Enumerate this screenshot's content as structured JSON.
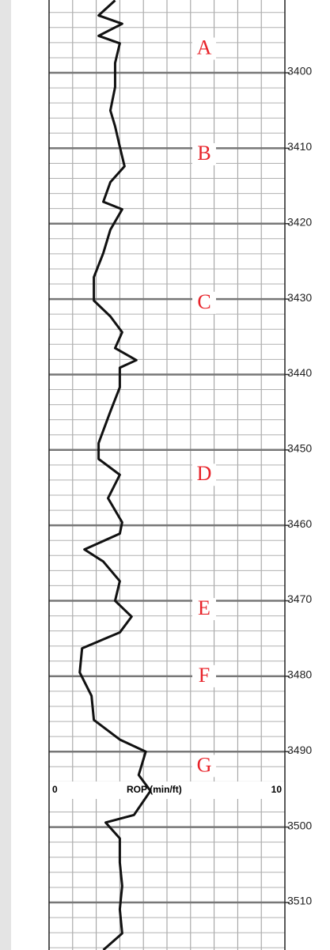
{
  "chart_data": {
    "type": "line",
    "orientation": "vertical",
    "xlabel": "ROP (min/ft)",
    "y": [
      3390.4,
      3392.4,
      3393.5,
      3395.1,
      3396.1,
      3398.7,
      3401.9,
      3405.0,
      3407.1,
      3409.8,
      3412.4,
      3414.5,
      3417.1,
      3418.1,
      3420.8,
      3423.9,
      3427.1,
      3430.2,
      3432.3,
      3434.4,
      3436.5,
      3438.1,
      3439.1,
      3441.7,
      3444.9,
      3449.1,
      3451.2,
      3453.3,
      3456.4,
      3459.6,
      3461.1,
      3463.2,
      3464.8,
      3467.4,
      3470.0,
      3472.1,
      3474.2,
      3476.3,
      3479.5,
      3482.6,
      3485.8,
      3488.4,
      3490.0,
      3493.1,
      3495.2,
      3498.4,
      3499.4,
      3501.5,
      3504.7,
      3507.8,
      3510.9,
      3514.1,
      3516.3
    ],
    "values": [
      2.8,
      2.1,
      3.1,
      2.1,
      3.0,
      2.8,
      2.8,
      2.6,
      2.8,
      3.0,
      3.2,
      2.6,
      2.3,
      3.1,
      2.6,
      2.3,
      1.9,
      1.9,
      2.6,
      3.1,
      2.8,
      3.7,
      3.0,
      3.0,
      2.6,
      2.1,
      2.1,
      3.0,
      2.5,
      3.1,
      3.0,
      1.5,
      2.3,
      3.0,
      2.8,
      3.5,
      3.0,
      1.4,
      1.3,
      1.8,
      1.9,
      3.0,
      4.1,
      3.8,
      4.3,
      3.6,
      2.4,
      3.0,
      3.0,
      3.1,
      3.0,
      3.1,
      2.3
    ],
    "color": "#111111",
    "xlim": [
      0,
      10
    ],
    "xticks": [
      0,
      10
    ],
    "ylim": [
      3390.35,
      3516.3
    ],
    "y_reversed": true,
    "yticks": [
      3400,
      3410,
      3420,
      3430,
      3440,
      3450,
      3460,
      3470,
      3480,
      3490,
      3500,
      3510
    ],
    "grid": true,
    "minor_grid_step": {
      "x": 1,
      "y": 2
    },
    "annotations": [
      {
        "text": "A",
        "y": 3396.8
      },
      {
        "text": "B",
        "y": 3410.8
      },
      {
        "text": "C",
        "y": 3430.5
      },
      {
        "text": "D",
        "y": 3453.3
      },
      {
        "text": "E",
        "y": 3471.1
      },
      {
        "text": "F",
        "y": 3480.0
      },
      {
        "text": "G",
        "y": 3491.9
      }
    ],
    "annotation_color": "#e8232a"
  }
}
